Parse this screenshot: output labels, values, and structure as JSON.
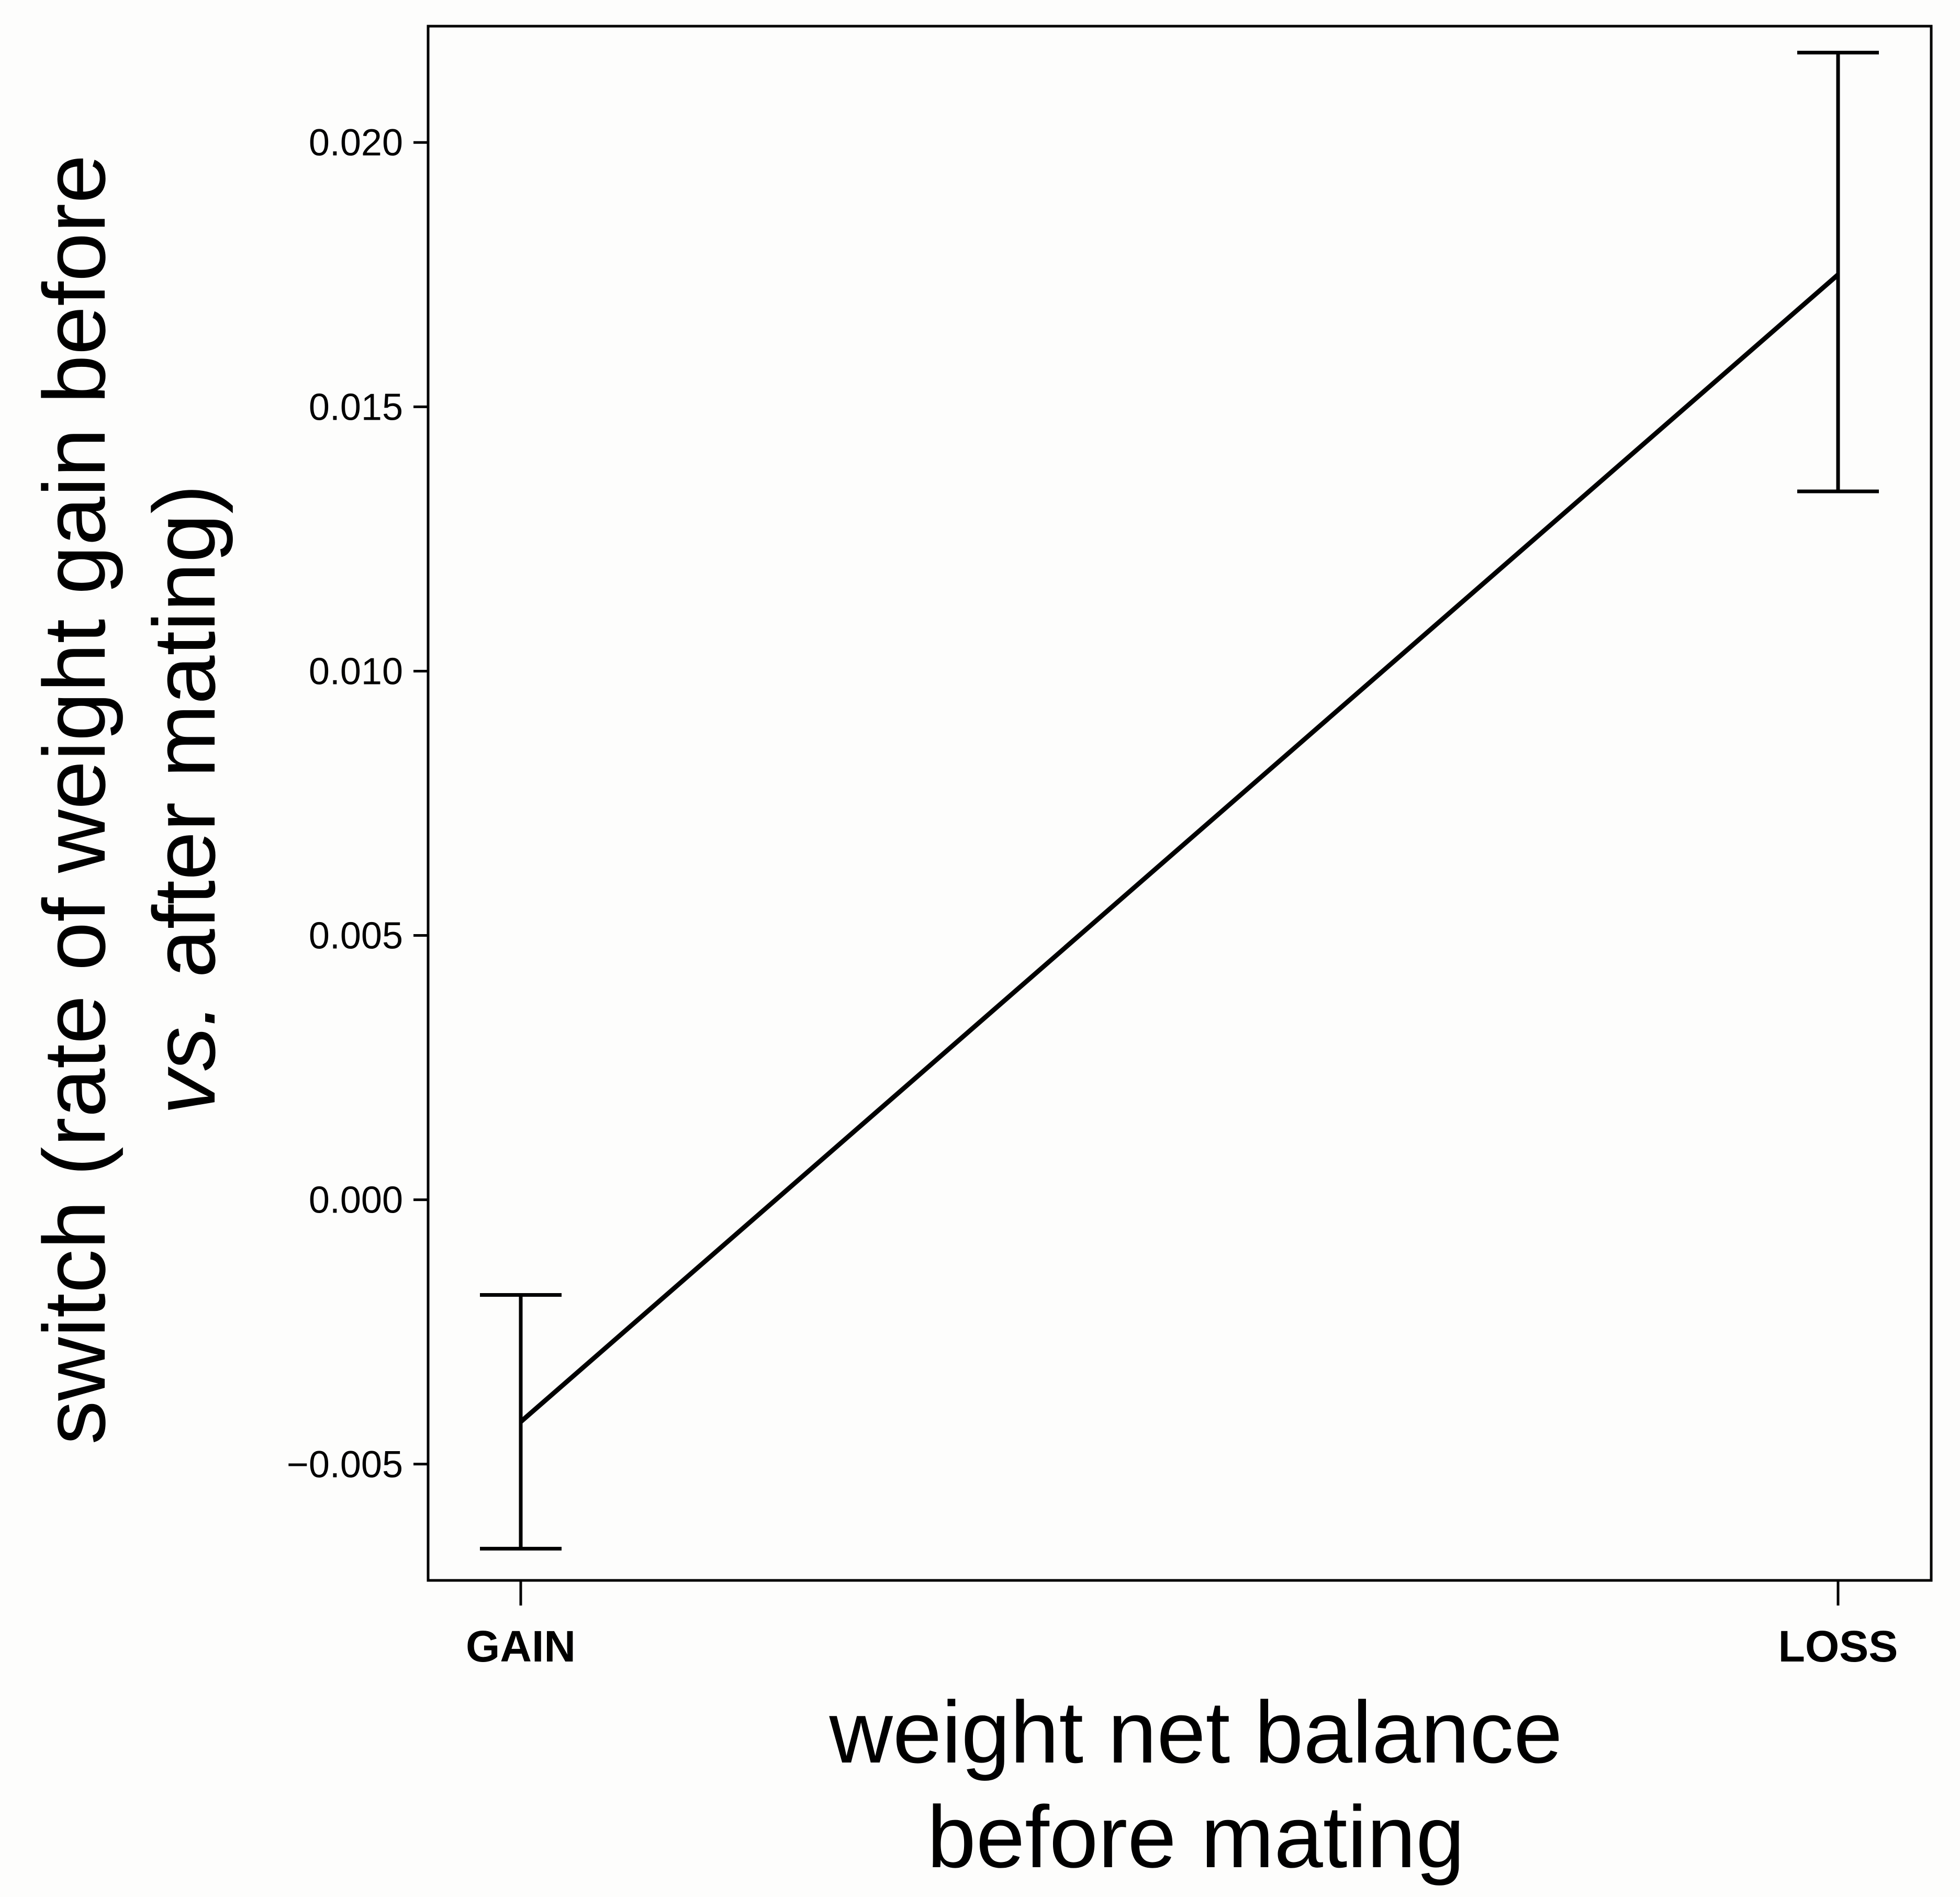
{
  "chart_data": {
    "type": "line",
    "title": "",
    "xlabel": {
      "line1": "weight net balance",
      "line2": "before mating"
    },
    "ylabel": {
      "line1": "switch (rate of weight gain before",
      "line2_italic": "vs.",
      "line2_rest": " after mating)"
    },
    "categories": [
      "GAIN",
      "LOSS"
    ],
    "series": [
      {
        "values": [
          -0.0042,
          0.0175
        ],
        "error_low": [
          -0.0066,
          0.0134
        ],
        "error_high": [
          -0.0018,
          0.0217
        ]
      }
    ],
    "ylim": [
      -0.0072,
      0.0222
    ],
    "yticks": [
      -0.005,
      0.0,
      0.005,
      0.01,
      0.015,
      0.02
    ],
    "ytick_labels": [
      "−0.005",
      "0.000",
      "0.005",
      "0.010",
      "0.015",
      "0.020"
    ],
    "grid": false,
    "colors": {
      "line": "#000000",
      "background": "#fdfdfc"
    }
  }
}
